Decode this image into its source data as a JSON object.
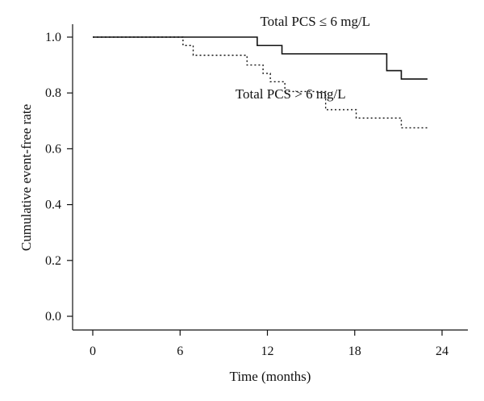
{
  "chart_data": {
    "type": "line",
    "subtype": "kaplan-meier step curve",
    "title": "",
    "xlabel": "Time (months)",
    "ylabel": "Cumulative event-free rate",
    "xlim": [
      0,
      24
    ],
    "ylim": [
      0.0,
      1.0
    ],
    "x_ticks": [
      0,
      6,
      12,
      18,
      24
    ],
    "x_tick_labels": [
      "0",
      "6",
      "12",
      "18",
      "24"
    ],
    "y_ticks": [
      0.0,
      0.2,
      0.4,
      0.6,
      0.8,
      1.0
    ],
    "y_tick_labels": [
      "0.0",
      "0.2",
      "0.4",
      "0.6",
      "0.8",
      "1.0"
    ],
    "grid": false,
    "legend": "none (direct labels)",
    "series": [
      {
        "name": "Total PCS ≤ 6 mg/L",
        "line_style": "solid",
        "color": "#111111",
        "label_anchor": [
          11.5,
          1.04
        ],
        "x": [
          0,
          11.3,
          13.0,
          20.2,
          21.2,
          23.0
        ],
        "y": [
          1.0,
          0.97,
          0.94,
          0.88,
          0.85,
          0.85
        ]
      },
      {
        "name": "Total PCS > 6 mg/L",
        "line_style": "dotted",
        "color": "#111111",
        "label_anchor": [
          9.8,
          0.78
        ],
        "x": [
          0,
          6.2,
          6.9,
          10.6,
          11.7,
          12.2,
          13.2,
          16.0,
          18.1,
          21.2,
          23.0
        ],
        "y": [
          1.0,
          0.97,
          0.935,
          0.9,
          0.87,
          0.84,
          0.805,
          0.74,
          0.71,
          0.675,
          0.675
        ]
      }
    ]
  }
}
